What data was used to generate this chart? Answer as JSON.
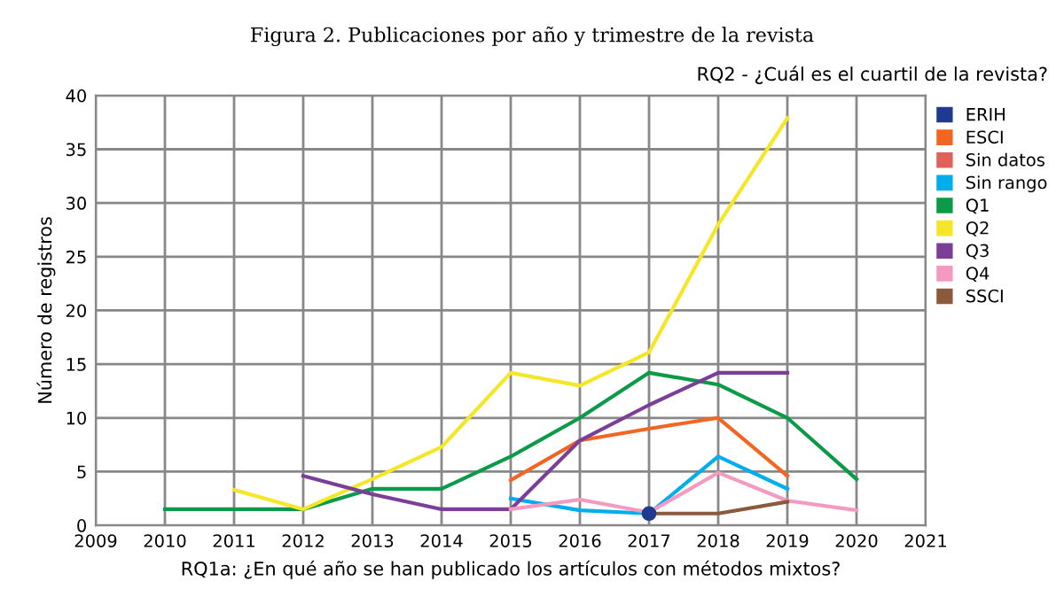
{
  "chart_data": {
    "type": "line",
    "title": "Figura 2. Publicaciones por año y trimestre de la revista",
    "xlabel": "RQ1a: ¿En qué año se han publicado los artículos con métodos mixtos?",
    "ylabel": "Número de registros",
    "legend_title": "RQ2 - ¿Cuál es el cuartil de la revista?",
    "x": [
      2010,
      2011,
      2012,
      2013,
      2014,
      2015,
      2016,
      2017,
      2018,
      2019,
      2020
    ],
    "series": [
      {
        "name": "ERIH",
        "color": "#203a8f",
        "marker": "circle",
        "values": [
          null,
          null,
          null,
          null,
          null,
          null,
          null,
          1.1,
          null,
          null,
          null
        ]
      },
      {
        "name": "ESCI",
        "color": "#f26522",
        "values": [
          null,
          null,
          null,
          null,
          null,
          4.2,
          7.9,
          9,
          10,
          4.6,
          null
        ]
      },
      {
        "name": "Sin datos",
        "color": "#e0605a",
        "values": [
          null,
          null,
          null,
          null,
          null,
          null,
          null,
          null,
          null,
          null,
          null
        ]
      },
      {
        "name": "Sin rango",
        "color": "#00aeef",
        "values": [
          null,
          null,
          null,
          null,
          null,
          2.5,
          1.4,
          1.1,
          6.4,
          3.4,
          null
        ]
      },
      {
        "name": "Q1",
        "color": "#0a9a48",
        "values": [
          1.5,
          1.5,
          1.5,
          3.4,
          3.4,
          6.4,
          10,
          14.2,
          13.1,
          10,
          4.3
        ]
      },
      {
        "name": "Q2",
        "color": "#f5e727",
        "values": [
          null,
          3.3,
          1.5,
          4.3,
          7.3,
          14.2,
          13,
          16.1,
          28,
          37.9,
          null
        ]
      },
      {
        "name": "Q3",
        "color": "#7b3f98",
        "values": [
          null,
          null,
          4.6,
          2.9,
          1.5,
          1.5,
          7.9,
          11.2,
          14.2,
          14.2,
          null
        ]
      },
      {
        "name": "Q4",
        "color": "#f49ac1",
        "values": [
          null,
          null,
          null,
          null,
          null,
          1.5,
          2.4,
          1.2,
          4.9,
          2.3,
          1.4
        ]
      },
      {
        "name": "SSCI",
        "color": "#8b5a3c",
        "values": [
          null,
          null,
          null,
          null,
          null,
          null,
          null,
          1.1,
          1.1,
          2.2,
          null
        ]
      }
    ],
    "xlim": [
      2009,
      2021
    ],
    "xticks": [
      2009,
      2010,
      2011,
      2012,
      2013,
      2014,
      2015,
      2016,
      2017,
      2018,
      2019,
      2020,
      2021
    ],
    "ylim": [
      0,
      40
    ],
    "yticks": [
      0,
      5,
      10,
      15,
      20,
      25,
      30,
      35,
      40
    ],
    "grid": true,
    "legend": "right",
    "marker": "none",
    "line_style": "solid"
  }
}
